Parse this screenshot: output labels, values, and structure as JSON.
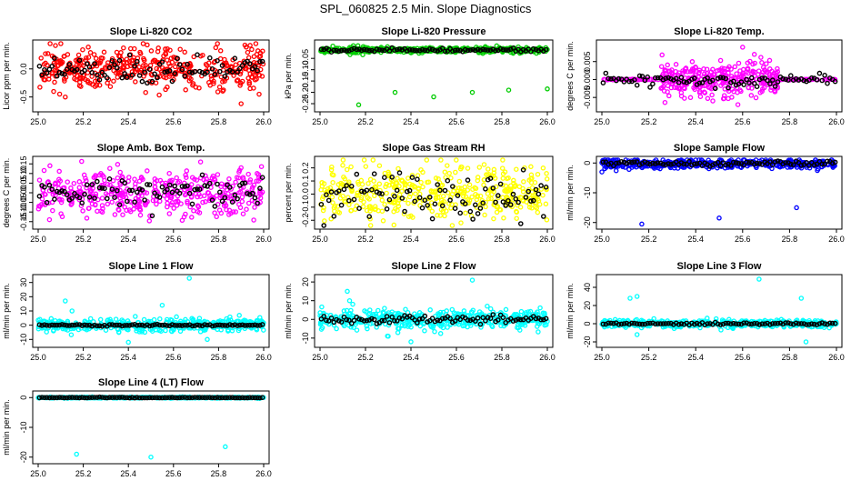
{
  "title": "SPL_060825  2.5 Min. Slope Diagnostics",
  "colors": {
    "overlay": "#000000",
    "axis": "#000000"
  },
  "chart_data": [
    {
      "type": "scatter",
      "id": "co2",
      "title": "Slope Li-820 CO2",
      "ylabel": "Licor ppm per min.",
      "color": "#ff0000",
      "xlim": [
        25.0,
        26.0
      ],
      "ylim": [
        -0.7,
        0.45
      ],
      "xticks": [
        25.0,
        25.2,
        25.4,
        25.6,
        25.8,
        26.0
      ],
      "xticklabels": [
        "25.0",
        "25.2",
        "25.4",
        "25.6",
        "25.8",
        "26.0"
      ],
      "yticks": [
        -0.5,
        0.0
      ],
      "yticklabels": [
        "-0.5",
        "0.0"
      ],
      "fill": {
        "n": 420,
        "center": 0.0,
        "spread": 0.18
      },
      "overlay": {
        "n": 90,
        "center": 0.0,
        "spread": 0.12
      },
      "outliers": [
        [
          25.63,
          0.35
        ],
        [
          25.9,
          -0.62
        ],
        [
          25.98,
          -0.45
        ],
        [
          25.12,
          -0.5
        ],
        [
          25.65,
          0.3
        ],
        [
          25.94,
          0.42
        ]
      ]
    },
    {
      "type": "scatter",
      "id": "pressure",
      "title": "Slope Li-820 Pressure",
      "ylabel": "kPa per min.",
      "color": "#00cc00",
      "xlim": [
        25.0,
        26.0
      ],
      "ylim": [
        -0.27,
        0.015
      ],
      "xticks": [
        25.0,
        25.2,
        25.4,
        25.6,
        25.8,
        26.0
      ],
      "xticklabels": [
        "25.0",
        "25.2",
        "25.4",
        "25.6",
        "25.8",
        "26.0"
      ],
      "yticks": [
        -0.25,
        -0.2,
        -0.15,
        -0.1,
        -0.05
      ],
      "yticklabels": [
        "-0.25",
        "-0.20",
        "-0.15",
        "-0.10",
        "-0.05"
      ],
      "fill": {
        "n": 420,
        "center": -0.013,
        "spread": 0.006
      },
      "overlay": {
        "n": 90,
        "center": -0.013,
        "spread": 0.004
      },
      "outliers": [
        [
          25.17,
          -0.255
        ],
        [
          25.33,
          -0.2
        ],
        [
          25.5,
          -0.22
        ],
        [
          25.67,
          -0.2
        ],
        [
          25.83,
          -0.19
        ],
        [
          26.0,
          -0.185
        ]
      ]
    },
    {
      "type": "scatter",
      "id": "temp",
      "title": "Slope Li-820 Temp.",
      "ylabel": "degrees C per min.",
      "color": "#ff00ff",
      "xlim": [
        25.0,
        26.0
      ],
      "ylim": [
        -0.008,
        0.01
      ],
      "xticks": [
        25.0,
        25.2,
        25.4,
        25.6,
        25.8,
        26.0
      ],
      "xticklabels": [
        "25.0",
        "25.2",
        "25.4",
        "25.6",
        "25.8",
        "26.0"
      ],
      "yticks": [
        -0.005,
        0.0,
        0.005
      ],
      "yticklabels": [
        "-0.005",
        "0.000",
        "0.005"
      ],
      "fill": {
        "n": 420,
        "center": 0.0,
        "spread": 0.0025,
        "window": [
          25.25,
          25.75
        ]
      },
      "overlay": {
        "n": 90,
        "center": 0.0,
        "spread": 0.0008
      },
      "outliers": [
        [
          25.6,
          0.009
        ],
        [
          25.65,
          0.007
        ],
        [
          25.58,
          -0.007
        ]
      ]
    },
    {
      "type": "scatter",
      "id": "boxtemp",
      "title": "Slope Amb. Box Temp.",
      "ylabel": "degrees C per min.",
      "color": "#ff00ff",
      "xlim": [
        25.0,
        26.0
      ],
      "ylim": [
        -0.17,
        0.17
      ],
      "xticks": [
        25.0,
        25.2,
        25.4,
        25.6,
        25.8,
        26.0
      ],
      "xticklabels": [
        "25.0",
        "25.2",
        "25.4",
        "25.6",
        "25.8",
        "26.0"
      ],
      "yticks": [
        -0.15,
        -0.1,
        -0.05,
        0.0,
        0.05,
        0.1,
        0.15
      ],
      "yticklabels": [
        "-0.15",
        "-0.10",
        "-0.05",
        "0.00",
        "0.05",
        "0.10",
        "0.15"
      ],
      "fill": {
        "n": 420,
        "center": 0.0,
        "spread": 0.06
      },
      "overlay": {
        "n": 90,
        "center": 0.0,
        "spread": 0.04
      },
      "outliers": [
        [
          25.72,
          0.16
        ],
        [
          25.9,
          0.13
        ],
        [
          25.05,
          -0.14
        ]
      ]
    },
    {
      "type": "scatter",
      "id": "rh",
      "title": "Slope Gas Stream RH",
      "ylabel": "percent per min.",
      "color": "#ffff00",
      "xlim": [
        25.0,
        26.0
      ],
      "ylim": [
        -0.24,
        0.26
      ],
      "xticks": [
        25.0,
        25.2,
        25.4,
        25.6,
        25.8,
        26.0
      ],
      "xticklabels": [
        "25.0",
        "25.2",
        "25.4",
        "25.6",
        "25.8",
        "26.0"
      ],
      "yticks": [
        -0.2,
        -0.1,
        0.0,
        0.1,
        0.2
      ],
      "yticklabels": [
        "-0.2",
        "-0.1",
        "0.0",
        "0.1",
        "0.2"
      ],
      "fill": {
        "n": 420,
        "center": 0.0,
        "spread": 0.1
      },
      "overlay": {
        "n": 90,
        "center": 0.0,
        "spread": 0.08
      },
      "outliers": [
        [
          25.1,
          0.22
        ],
        [
          25.62,
          -0.22
        ],
        [
          25.9,
          0.2
        ]
      ]
    },
    {
      "type": "scatter",
      "id": "sampleflow",
      "title": "Slope Sample Flow",
      "ylabel": "ml/min per min.",
      "color": "#0000ff",
      "xlim": [
        25.0,
        26.0
      ],
      "ylim": [
        -21,
        1
      ],
      "xticks": [
        25.0,
        25.2,
        25.4,
        25.6,
        25.8,
        26.0
      ],
      "xticklabels": [
        "25.0",
        "25.2",
        "25.4",
        "25.6",
        "25.8",
        "26.0"
      ],
      "yticks": [
        -20,
        -10,
        0
      ],
      "yticklabels": [
        "-20",
        "-10",
        "0"
      ],
      "fill": {
        "n": 420,
        "center": -0.3,
        "spread": 0.8
      },
      "overlay": {
        "n": 90,
        "center": -0.2,
        "spread": 0.4
      },
      "outliers": [
        [
          25.17,
          -20.5
        ],
        [
          25.5,
          -18.5
        ],
        [
          25.83,
          -15
        ],
        [
          25.0,
          -3
        ]
      ]
    },
    {
      "type": "scatter",
      "id": "line1",
      "title": "Slope Line 1 Flow",
      "ylabel": "ml/min per min.",
      "color": "#00ffff",
      "xlim": [
        25.0,
        26.0
      ],
      "ylim": [
        -13,
        33
      ],
      "xticks": [
        25.0,
        25.2,
        25.4,
        25.6,
        25.8,
        26.0
      ],
      "xticklabels": [
        "25.0",
        "25.2",
        "25.4",
        "25.6",
        "25.8",
        "26.0"
      ],
      "yticks": [
        -10,
        0,
        10,
        20,
        30
      ],
      "yticklabels": [
        "-10",
        "0",
        "10",
        "20",
        "30"
      ],
      "fill": {
        "n": 420,
        "center": 0.0,
        "spread": 2.2
      },
      "overlay": {
        "n": 90,
        "center": 0.0,
        "spread": 0.3
      },
      "outliers": [
        [
          25.67,
          33
        ],
        [
          25.12,
          17
        ],
        [
          25.15,
          10
        ],
        [
          25.4,
          -12
        ],
        [
          25.75,
          -10
        ],
        [
          25.55,
          14
        ]
      ]
    },
    {
      "type": "scatter",
      "id": "line2",
      "title": "Slope Line 2 Flow",
      "ylabel": "ml/min per min.",
      "color": "#00ffff",
      "xlim": [
        25.0,
        26.0
      ],
      "ylim": [
        -13,
        22
      ],
      "xticks": [
        25.0,
        25.2,
        25.4,
        25.6,
        25.8,
        26.0
      ],
      "xticklabels": [
        "25.0",
        "25.2",
        "25.4",
        "25.6",
        "25.8",
        "26.0"
      ],
      "yticks": [
        -10,
        0,
        10,
        20
      ],
      "yticklabels": [
        "-10",
        "0",
        "10",
        "20"
      ],
      "fill": {
        "n": 420,
        "center": 0.0,
        "spread": 2.5
      },
      "overlay": {
        "n": 90,
        "center": 0.0,
        "spread": 1.0
      },
      "outliers": [
        [
          25.67,
          21
        ],
        [
          25.12,
          15
        ],
        [
          25.13,
          10
        ],
        [
          25.4,
          -12
        ],
        [
          25.3,
          -9
        ]
      ]
    },
    {
      "type": "scatter",
      "id": "line3",
      "title": "Slope Line 3 Flow",
      "ylabel": "ml/min per min.",
      "color": "#00ffff",
      "xlim": [
        25.0,
        26.0
      ],
      "ylim": [
        -22,
        50
      ],
      "xticks": [
        25.0,
        25.2,
        25.4,
        25.6,
        25.8,
        26.0
      ],
      "xticklabels": [
        "25.0",
        "25.2",
        "25.4",
        "25.6",
        "25.8",
        "26.0"
      ],
      "yticks": [
        -20,
        0,
        20,
        40
      ],
      "yticklabels": [
        "-20",
        "0",
        "20",
        "40"
      ],
      "fill": {
        "n": 420,
        "center": 0.0,
        "spread": 2.0
      },
      "overlay": {
        "n": 90,
        "center": 0.0,
        "spread": 0.6
      },
      "outliers": [
        [
          25.67,
          49
        ],
        [
          25.12,
          28
        ],
        [
          25.15,
          30
        ],
        [
          25.85,
          28
        ],
        [
          25.87,
          -20
        ],
        [
          25.15,
          -12
        ]
      ]
    },
    {
      "type": "scatter",
      "id": "line4",
      "title": "Slope Line 4 (LT) Flow",
      "ylabel": "ml/min per min.",
      "color": "#00ffff",
      "xlim": [
        25.0,
        26.0
      ],
      "ylim": [
        -21,
        1
      ],
      "xticks": [
        25.0,
        25.2,
        25.4,
        25.6,
        25.8,
        26.0
      ],
      "xticklabels": [
        "25.0",
        "25.2",
        "25.4",
        "25.6",
        "25.8",
        "26.0"
      ],
      "yticks": [
        -20,
        -10,
        0
      ],
      "yticklabels": [
        "-20",
        "-10",
        "0"
      ],
      "fill": {
        "n": 420,
        "center": 0.0,
        "spread": 0.1
      },
      "overlay": {
        "n": 90,
        "center": 0.0,
        "spread": 0.05
      },
      "outliers": [
        [
          25.17,
          -19
        ],
        [
          25.5,
          -20
        ],
        [
          25.83,
          -16.5
        ]
      ]
    }
  ]
}
